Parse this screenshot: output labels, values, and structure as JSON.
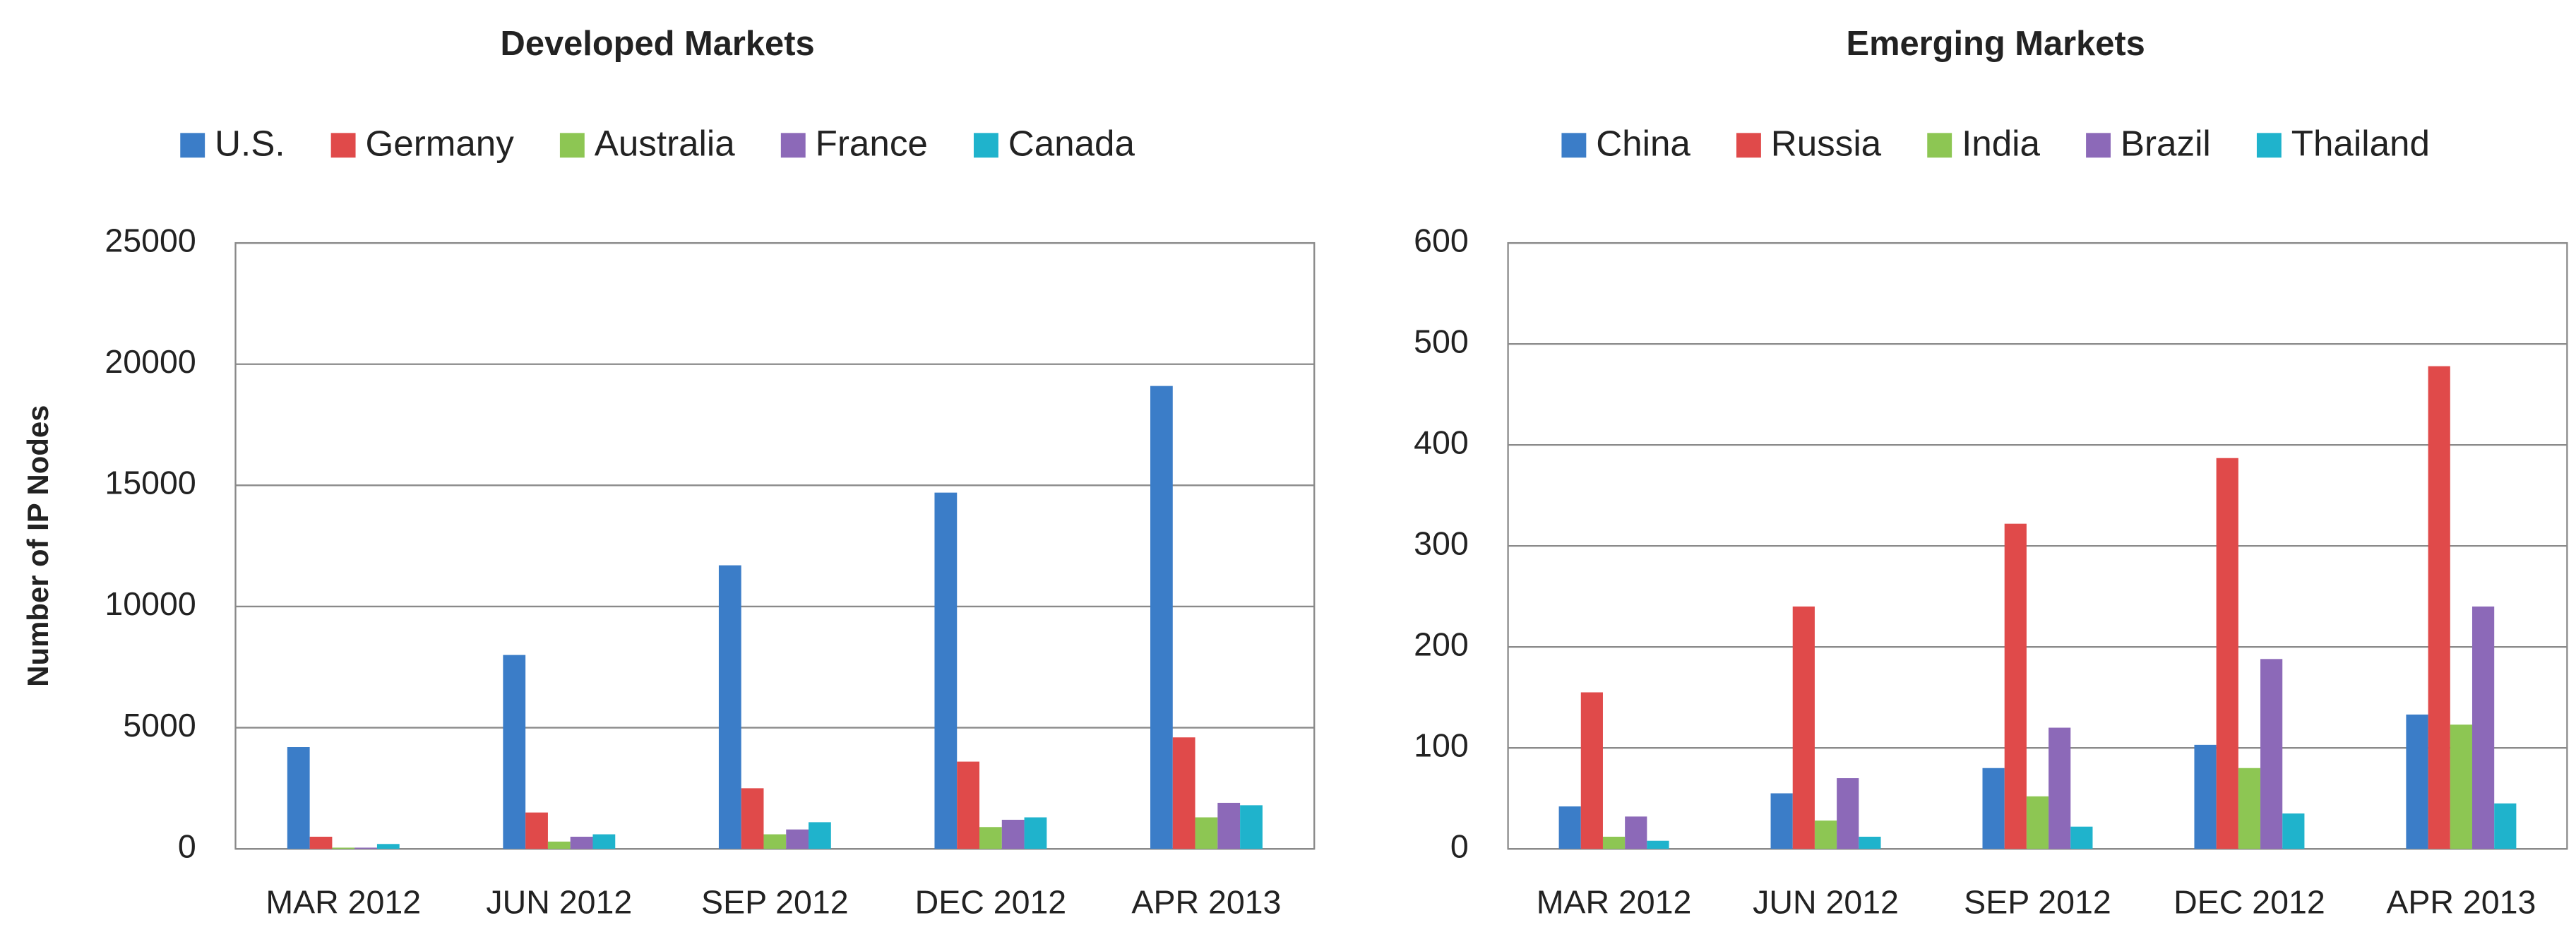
{
  "chart_data": [
    {
      "type": "bar",
      "title": "Developed Markets",
      "y_label": "Number of IP Nodes",
      "categories": [
        "MAR 2012",
        "JUN 2012",
        "SEP 2012",
        "DEC 2012",
        "APR 2013"
      ],
      "series": [
        {
          "name": "U.S.",
          "color": "#3b7dc8",
          "values": [
            4200,
            8000,
            11700,
            14700,
            19100
          ]
        },
        {
          "name": "Germany",
          "color": "#e04a4a",
          "values": [
            500,
            1500,
            2500,
            3600,
            4600
          ]
        },
        {
          "name": "Australia",
          "color": "#8dc653",
          "values": [
            50,
            300,
            600,
            900,
            1300
          ]
        },
        {
          "name": "France",
          "color": "#8c69b8",
          "values": [
            50,
            500,
            800,
            1200,
            1900
          ]
        },
        {
          "name": "Canada",
          "color": "#1fb3cc",
          "values": [
            200,
            600,
            1100,
            1300,
            1800
          ]
        }
      ],
      "ylim": [
        0,
        25000
      ],
      "yticks": [
        0,
        5000,
        10000,
        15000,
        20000,
        25000
      ],
      "grid": true,
      "legend": "top"
    },
    {
      "type": "bar",
      "title": "Emerging Markets",
      "categories": [
        "MAR 2012",
        "JUN 2012",
        "SEP 2012",
        "DEC 2012",
        "APR 2013"
      ],
      "series": [
        {
          "name": "China",
          "color": "#3b7dc8",
          "values": [
            42,
            55,
            80,
            103,
            133
          ]
        },
        {
          "name": "Russia",
          "color": "#e04a4a",
          "values": [
            155,
            240,
            322,
            387,
            478
          ]
        },
        {
          "name": "India",
          "color": "#8dc653",
          "values": [
            12,
            28,
            52,
            80,
            123
          ]
        },
        {
          "name": "Brazil",
          "color": "#8c69b8",
          "values": [
            32,
            70,
            120,
            188,
            240
          ]
        },
        {
          "name": "Thailand",
          "color": "#1fb3cc",
          "values": [
            8,
            12,
            22,
            35,
            45
          ]
        }
      ],
      "ylim": [
        0,
        600
      ],
      "yticks": [
        0,
        100,
        200,
        300,
        400,
        500,
        600
      ],
      "grid": true,
      "legend": "top"
    }
  ]
}
